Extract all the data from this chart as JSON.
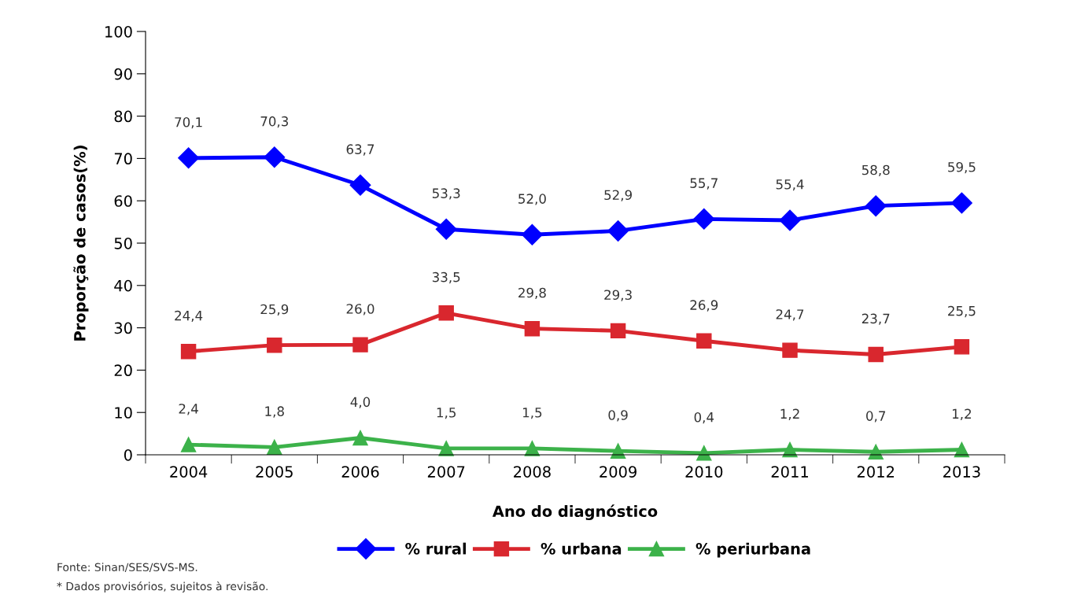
{
  "chart_data": {
    "type": "line",
    "xlabel": "Ano do diagnóstico",
    "ylabel": "Proporção de casos(%)",
    "categories": [
      "2004",
      "2005",
      "2006",
      "2007",
      "2008",
      "2009",
      "2010",
      "2011",
      "2012",
      "2013"
    ],
    "series": [
      {
        "name": "% rural",
        "color": "#0000ff",
        "marker": "diamond",
        "values": [
          70.1,
          70.3,
          63.7,
          53.3,
          52.0,
          52.9,
          55.7,
          55.4,
          58.8,
          59.5
        ],
        "value_labels": [
          "70,1",
          "70,3",
          "63,7",
          "53,3",
          "52,0",
          "52,9",
          "55,7",
          "55,4",
          "58,8",
          "59,5"
        ]
      },
      {
        "name": "% urbana",
        "color": "#d9272e",
        "marker": "square",
        "values": [
          24.4,
          25.9,
          26.0,
          33.5,
          29.8,
          29.3,
          26.9,
          24.7,
          23.7,
          25.5
        ],
        "value_labels": [
          "24,4",
          "25,9",
          "26,0",
          "33,5",
          "29,8",
          "29,3",
          "26,9",
          "24,7",
          "23,7",
          "25,5"
        ]
      },
      {
        "name": "% periurbana",
        "color": "#3cb24a",
        "marker": "triangle",
        "values": [
          2.4,
          1.8,
          4.0,
          1.5,
          1.5,
          0.9,
          0.4,
          1.2,
          0.7,
          1.2
        ],
        "value_labels": [
          "2,4",
          "1,8",
          "4,0",
          "1,5",
          "1,5",
          "0,9",
          "0,4",
          "1,2",
          "0,7",
          "1,2"
        ]
      }
    ],
    "ylim": [
      0,
      100
    ],
    "yticks": [
      0,
      10,
      20,
      30,
      40,
      50,
      60,
      70,
      80,
      90,
      100
    ],
    "grid": false,
    "legend": "bottom",
    "line_style": "solid",
    "annotations": [
      "Fonte: Sinan/SES/SVS-MS.",
      "* Dados provisórios, sujeitos à revisão."
    ]
  }
}
